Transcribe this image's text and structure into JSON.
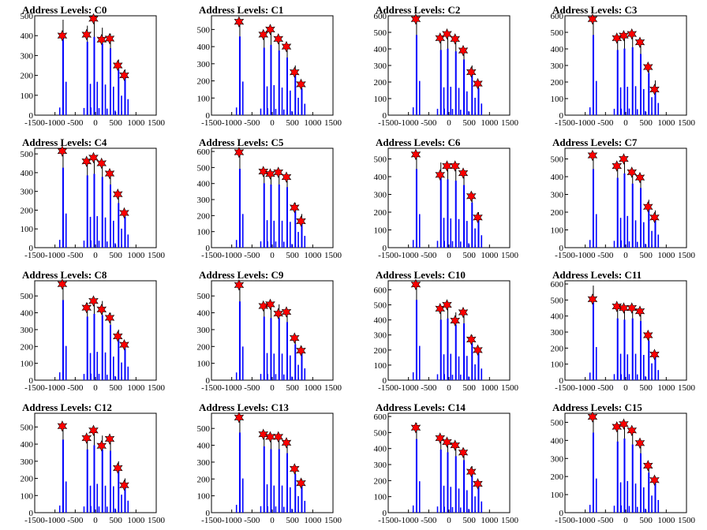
{
  "figure": {
    "columns": 4,
    "rows": 4
  },
  "colors": {
    "bar": "#0000ff",
    "line": "#000000",
    "marker": "#ff0000",
    "marker_edge": "#000000",
    "axis": "#000000"
  },
  "chart_data": [
    {
      "type": "bar",
      "title": "Address Levels: C0",
      "xlim": [
        -1500,
        1500
      ],
      "ylim": [
        0,
        500
      ],
      "yticks": [
        0,
        100,
        200,
        300,
        400,
        500
      ],
      "xticks": [
        -1500,
        -1000,
        -500,
        0,
        500,
        1000,
        1500
      ],
      "peak_x": [
        -800,
        -200,
        -30,
        170,
        370,
        570,
        730
      ],
      "peak_y": [
        480,
        450,
        480,
        440,
        410,
        280,
        230
      ],
      "marker_y": [
        400,
        405,
        485,
        380,
        385,
        250,
        200
      ]
    },
    {
      "type": "bar",
      "title": "Address Levels: C1",
      "xlim": [
        -1500,
        1500
      ],
      "ylim": [
        0,
        580
      ],
      "yticks": [
        0,
        100,
        200,
        300,
        400,
        500
      ],
      "xticks": [
        -1500,
        -1000,
        -500,
        0,
        500,
        1000,
        1500
      ],
      "peak_x": [
        -800,
        -200,
        -30,
        170,
        370,
        570,
        730
      ],
      "peak_y": [
        560,
        480,
        500,
        460,
        410,
        290,
        190
      ],
      "marker_y": [
        545,
        470,
        500,
        445,
        400,
        250,
        180
      ]
    },
    {
      "type": "bar",
      "title": "Address Levels: C2",
      "xlim": [
        -1500,
        1500
      ],
      "ylim": [
        0,
        600
      ],
      "yticks": [
        0,
        100,
        200,
        300,
        400,
        500,
        600
      ],
      "xticks": [
        -1500,
        -1000,
        -500,
        0,
        500,
        1000,
        1500
      ],
      "peak_x": [
        -800,
        -200,
        -30,
        170,
        370,
        570,
        730
      ],
      "peak_y": [
        590,
        480,
        490,
        470,
        410,
        300,
        200
      ],
      "marker_y": [
        580,
        465,
        490,
        460,
        390,
        260,
        190
      ]
    },
    {
      "type": "bar",
      "title": "Address Levels: C3",
      "xlim": [
        -1500,
        1500
      ],
      "ylim": [
        0,
        600
      ],
      "yticks": [
        0,
        100,
        200,
        300,
        400,
        500,
        600
      ],
      "xticks": [
        -1500,
        -1000,
        -500,
        0,
        500,
        1000,
        1500
      ],
      "peak_x": [
        -800,
        -200,
        -30,
        170,
        370,
        570,
        730
      ],
      "peak_y": [
        590,
        480,
        490,
        500,
        450,
        310,
        210
      ],
      "marker_y": [
        580,
        465,
        480,
        490,
        440,
        290,
        155
      ]
    },
    {
      "type": "bar",
      "title": "Address Levels: C4",
      "xlim": [
        -1500,
        1500
      ],
      "ylim": [
        0,
        530
      ],
      "yticks": [
        0,
        100,
        200,
        300,
        400,
        500
      ],
      "xticks": [
        -1500,
        -1000,
        -500,
        0,
        500,
        1000,
        1500
      ],
      "peak_x": [
        -800,
        -200,
        -30,
        170,
        370,
        570,
        730
      ],
      "peak_y": [
        520,
        470,
        480,
        460,
        410,
        290,
        200
      ],
      "marker_y": [
        515,
        460,
        480,
        450,
        395,
        285,
        185
      ]
    },
    {
      "type": "bar",
      "title": "Address Levels: C5",
      "xlim": [
        -1500,
        1500
      ],
      "ylim": [
        0,
        620
      ],
      "yticks": [
        0,
        100,
        200,
        300,
        400,
        500,
        600
      ],
      "xticks": [
        -1500,
        -1000,
        -500,
        0,
        500,
        1000,
        1500
      ],
      "peak_x": [
        -800,
        -200,
        -30,
        170,
        370,
        570,
        730
      ],
      "peak_y": [
        600,
        490,
        480,
        480,
        460,
        280,
        210
      ],
      "marker_y": [
        595,
        475,
        460,
        470,
        440,
        250,
        165
      ]
    },
    {
      "type": "bar",
      "title": "Address Levels: C6",
      "xlim": [
        -1500,
        1500
      ],
      "ylim": [
        0,
        560
      ],
      "yticks": [
        0,
        100,
        200,
        300,
        400,
        500
      ],
      "xticks": [
        -1500,
        -1000,
        -500,
        0,
        500,
        1000,
        1500
      ],
      "peak_x": [
        -800,
        -200,
        -30,
        170,
        370,
        570,
        730
      ],
      "peak_y": [
        540,
        480,
        470,
        460,
        430,
        310,
        200
      ],
      "marker_y": [
        525,
        410,
        460,
        460,
        420,
        290,
        170
      ]
    },
    {
      "type": "bar",
      "title": "Address Levels: C7",
      "xlim": [
        -1500,
        1500
      ],
      "ylim": [
        0,
        560
      ],
      "yticks": [
        0,
        100,
        200,
        300,
        400,
        500
      ],
      "xticks": [
        -1500,
        -1000,
        -500,
        0,
        500,
        1000,
        1500
      ],
      "peak_x": [
        -800,
        -200,
        -30,
        170,
        370,
        570,
        730
      ],
      "peak_y": [
        540,
        480,
        510,
        440,
        410,
        270,
        210
      ],
      "marker_y": [
        520,
        460,
        500,
        425,
        395,
        230,
        170
      ]
    },
    {
      "type": "bar",
      "title": "Address Levels: C8",
      "xlim": [
        -1500,
        1500
      ],
      "ylim": [
        0,
        590
      ],
      "yticks": [
        0,
        100,
        200,
        300,
        400,
        500
      ],
      "xticks": [
        -1500,
        -1000,
        -500,
        0,
        500,
        1000,
        1500
      ],
      "peak_x": [
        -800,
        -200,
        -30,
        170,
        370,
        570,
        730
      ],
      "peak_y": [
        580,
        460,
        480,
        470,
        400,
        300,
        230
      ],
      "marker_y": [
        570,
        430,
        470,
        420,
        370,
        260,
        210
      ]
    },
    {
      "type": "bar",
      "title": "Address Levels: C9",
      "xlim": [
        -1500,
        1500
      ],
      "ylim": [
        0,
        590
      ],
      "yticks": [
        0,
        100,
        200,
        300,
        400,
        500
      ],
      "xticks": [
        -1500,
        -1000,
        -500,
        0,
        500,
        1000,
        1500
      ],
      "peak_x": [
        -800,
        -200,
        -30,
        170,
        370,
        570,
        730
      ],
      "peak_y": [
        570,
        460,
        450,
        450,
        420,
        260,
        200
      ],
      "marker_y": [
        565,
        440,
        450,
        395,
        405,
        250,
        175
      ]
    },
    {
      "type": "bar",
      "title": "Address Levels: C10",
      "xlim": [
        -1500,
        1500
      ],
      "ylim": [
        0,
        660
      ],
      "yticks": [
        0,
        100,
        200,
        300,
        400,
        500,
        600
      ],
      "xticks": [
        -1500,
        -1000,
        -500,
        0,
        500,
        1000,
        1500
      ],
      "peak_x": [
        -800,
        -200,
        -30,
        170,
        370,
        570,
        730
      ],
      "peak_y": [
        650,
        490,
        500,
        450,
        460,
        300,
        220
      ],
      "marker_y": [
        635,
        475,
        500,
        395,
        450,
        270,
        200
      ]
    },
    {
      "type": "bar",
      "title": "Address Levels: C11",
      "xlim": [
        -1500,
        1500
      ],
      "ylim": [
        0,
        620
      ],
      "yticks": [
        0,
        100,
        200,
        300,
        400,
        500,
        600
      ],
      "xticks": [
        -1500,
        -1000,
        -500,
        0,
        500,
        1000,
        1500
      ],
      "peak_x": [
        -800,
        -200,
        -30,
        170,
        370,
        570,
        730
      ],
      "peak_y": [
        590,
        470,
        460,
        470,
        450,
        300,
        180
      ],
      "marker_y": [
        505,
        460,
        450,
        450,
        430,
        280,
        160
      ]
    },
    {
      "type": "bar",
      "title": "Address Levels: C12",
      "xlim": [
        -1500,
        1500
      ],
      "ylim": [
        0,
        580
      ],
      "yticks": [
        0,
        100,
        200,
        300,
        400,
        500
      ],
      "xticks": [
        -1500,
        -1000,
        -500,
        0,
        500,
        1000,
        1500
      ],
      "peak_x": [
        -800,
        -200,
        -30,
        170,
        370,
        570,
        730
      ],
      "peak_y": [
        520,
        450,
        480,
        450,
        440,
        300,
        200
      ],
      "marker_y": [
        505,
        435,
        480,
        390,
        430,
        260,
        160
      ]
    },
    {
      "type": "bar",
      "title": "Address Levels: C13",
      "xlim": [
        -1500,
        1500
      ],
      "ylim": [
        0,
        590
      ],
      "yticks": [
        0,
        100,
        200,
        300,
        400,
        500
      ],
      "xticks": [
        -1500,
        -1000,
        -500,
        0,
        500,
        1000,
        1500
      ],
      "peak_x": [
        -800,
        -200,
        -30,
        170,
        370,
        570,
        730
      ],
      "peak_y": [
        580,
        480,
        460,
        460,
        430,
        280,
        200
      ],
      "marker_y": [
        565,
        465,
        450,
        450,
        415,
        260,
        175
      ]
    },
    {
      "type": "bar",
      "title": "Address Levels: C14",
      "xlim": [
        -1500,
        1500
      ],
      "ylim": [
        0,
        620
      ],
      "yticks": [
        0,
        100,
        200,
        300,
        400,
        500,
        600
      ],
      "xticks": [
        -1500,
        -1000,
        -500,
        0,
        500,
        1000,
        1500
      ],
      "peak_x": [
        -800,
        -200,
        -30,
        170,
        370,
        570,
        730
      ],
      "peak_y": [
        560,
        480,
        460,
        430,
        400,
        290,
        200
      ],
      "marker_y": [
        530,
        465,
        440,
        420,
        375,
        255,
        180
      ]
    },
    {
      "type": "bar",
      "title": "Address Levels: C15",
      "xlim": [
        -1500,
        1500
      ],
      "ylim": [
        0,
        550
      ],
      "yticks": [
        0,
        100,
        200,
        300,
        400,
        500
      ],
      "xticks": [
        -1500,
        -1000,
        -500,
        0,
        500,
        1000,
        1500
      ],
      "peak_x": [
        -800,
        -200,
        -30,
        170,
        370,
        570,
        730
      ],
      "peak_y": [
        540,
        480,
        500,
        460,
        400,
        270,
        200
      ],
      "marker_y": [
        530,
        475,
        490,
        455,
        385,
        260,
        180
      ]
    }
  ]
}
